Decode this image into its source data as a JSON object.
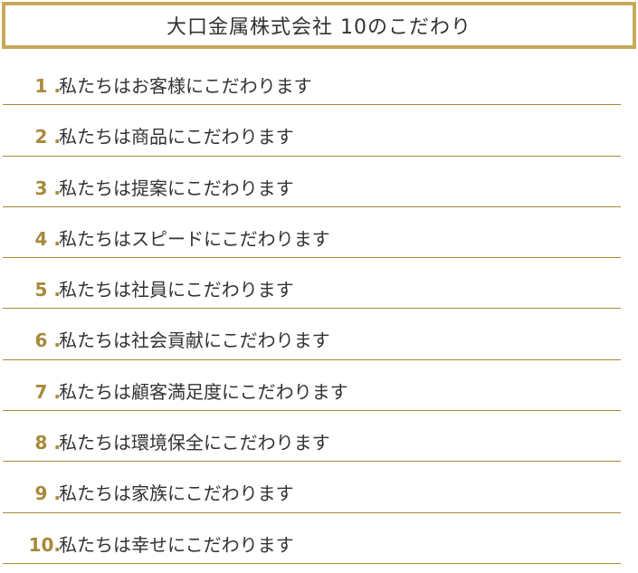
{
  "title": "大口金属株式会社 10のこだわり",
  "items": [
    {
      "num": "1 .",
      "text": "私たちはお客様にこだわります"
    },
    {
      "num": "2 .",
      "text": "私たちは商品にこだわります"
    },
    {
      "num": "3 .",
      "text": "私たちは提案にこだわります"
    },
    {
      "num": "4 .",
      "text": "私たちはスピードにこだわります"
    },
    {
      "num": "5 .",
      "text": "私たちは社員にこだわります"
    },
    {
      "num": "6 .",
      "text": "私たちは社会貢献にこだわります"
    },
    {
      "num": "7 .",
      "text": "私たちは顧客満足度にこだわります"
    },
    {
      "num": "8 .",
      "text": "私たちは環境保全にこだわります"
    },
    {
      "num": "9 .",
      "text": "私たちは家族にこだわります"
    },
    {
      "num": "10.",
      "text": "私たちは幸せにこだわります"
    }
  ],
  "colors": {
    "accent": "#c5aa5a",
    "number": "#a8893a",
    "text": "#333333"
  }
}
